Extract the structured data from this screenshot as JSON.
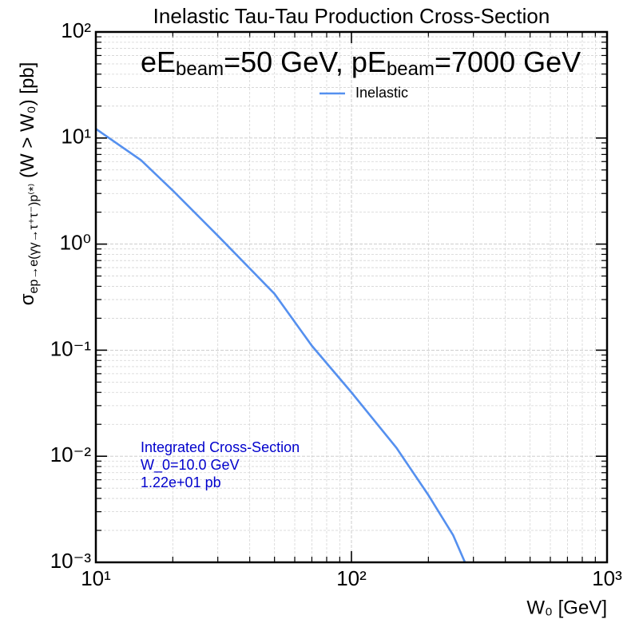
{
  "chart_data": {
    "type": "line",
    "title": "Inelastic Tau-Tau Production Cross-Section",
    "beam_label": [
      "eE",
      "beam",
      "=50 GeV, pE",
      "beam",
      "=7000 GeV"
    ],
    "x_label": "W₀ [GeV]",
    "y_label": [
      "σ",
      "ep→e(γγ→τ⁺τ⁻)p⁽*⁾",
      " (W > W₀) [pb]"
    ],
    "annotation": [
      "Integrated Cross-Section",
      "W_0=10.0 GeV",
      "1.22e+01 pb"
    ],
    "annotation_color": "#0000cc",
    "x": [
      10,
      15,
      20,
      30,
      50,
      70,
      100,
      150,
      200,
      250,
      278
    ],
    "series": [
      {
        "name": "Inelastic",
        "color": "#5590ef",
        "values": [
          12.2,
          6.2,
          3.2,
          1.2,
          0.34,
          0.11,
          0.04,
          0.012,
          0.0043,
          0.0018,
          0.001
        ]
      }
    ],
    "xlim": [
      10,
      1000
    ],
    "ylim": [
      0.001,
      100
    ],
    "xscale": "log",
    "yscale": "log",
    "xticks": [
      {
        "value": 10,
        "label": "10¹"
      },
      {
        "value": 100,
        "label": "10²"
      },
      {
        "value": 1000,
        "label": "10³"
      }
    ],
    "yticks": [
      {
        "value": 0.001,
        "label": "10⁻³"
      },
      {
        "value": 0.01,
        "label": "10⁻²"
      },
      {
        "value": 0.1,
        "label": "10⁻¹"
      },
      {
        "value": 1,
        "label": "10⁰"
      },
      {
        "value": 10,
        "label": "10¹"
      },
      {
        "value": 100,
        "label": "10²"
      }
    ],
    "grid": true,
    "legend": "upper center"
  }
}
